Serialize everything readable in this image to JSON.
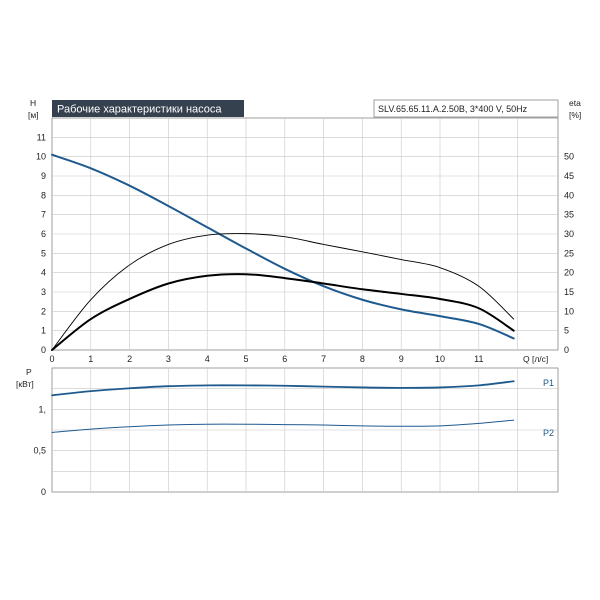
{
  "title": "Рабочие характеристики насоса",
  "model": "SLV.65.65.11.A.2.50B, 3*400 V, 50Hz",
  "colors": {
    "blue": "#1f5a8f",
    "black": "#000000",
    "grid": "#c8c8c8",
    "title_bg": "#36414f"
  },
  "chart_data": [
    {
      "type": "line",
      "xlabel": "Q [л/с]",
      "ylabel": "H\n[м]",
      "y2label": "eta\n[%]",
      "xlim": [
        0,
        12
      ],
      "ylim": [
        0,
        12
      ],
      "y2lim": [
        0,
        60
      ],
      "xticks": [
        "0",
        "1",
        "2",
        "3",
        "4",
        "5",
        "6",
        "7",
        "8",
        "9",
        "10",
        "11"
      ],
      "yticks": [
        "0",
        "1",
        "2",
        "3",
        "4",
        "5",
        "6",
        "7",
        "8",
        "9",
        "10",
        "11"
      ],
      "y2ticks": [
        "0",
        "5",
        "10",
        "15",
        "20",
        "25",
        "30",
        "35",
        "40",
        "45",
        "50"
      ],
      "grid": true,
      "series": [
        {
          "key": "H",
          "axis": "left",
          "color": "#1f5a8f",
          "width": 2,
          "x": [
            0,
            1,
            2,
            3,
            4,
            5,
            6,
            7,
            8,
            9,
            10,
            11,
            11.9
          ],
          "y": [
            10.1,
            9.4,
            8.5,
            7.45,
            6.35,
            5.25,
            4.2,
            3.3,
            2.6,
            2.1,
            1.75,
            1.35,
            0.6
          ]
        },
        {
          "key": "eta_thin",
          "axis": "right",
          "color": "#000000",
          "width": 0.9,
          "x": [
            0,
            1,
            2,
            3,
            4,
            5,
            6,
            7,
            8,
            9,
            10,
            11,
            11.9
          ],
          "y": [
            0,
            13,
            22,
            27.3,
            29.7,
            30.1,
            29.3,
            27.3,
            25.4,
            23.4,
            21.3,
            16.5,
            8.0
          ]
        },
        {
          "key": "eta_thick",
          "axis": "right",
          "color": "#000000",
          "width": 2,
          "x": [
            0,
            1,
            2,
            3,
            4,
            5,
            6,
            7,
            8,
            9,
            10,
            11,
            11.9
          ],
          "y": [
            0,
            8,
            13.2,
            17.2,
            19.2,
            19.6,
            18.6,
            17.2,
            15.7,
            14.5,
            13.2,
            10.8,
            5.0
          ]
        }
      ]
    },
    {
      "type": "line",
      "xlabel": "",
      "ylabel": "P\n[кВт]",
      "xlim": [
        0,
        12
      ],
      "ylim": [
        0,
        1.5
      ],
      "yticks": [
        "0",
        "0,5",
        "1,"
      ],
      "ytick_values": [
        0,
        0.5,
        1.0
      ],
      "grid": true,
      "series": [
        {
          "name": "P1",
          "color": "#1f5a8f",
          "width": 1.8,
          "x": [
            0,
            1,
            2,
            3,
            4,
            5,
            6,
            7,
            8,
            9,
            10,
            11,
            11.9
          ],
          "y": [
            1.17,
            1.22,
            1.255,
            1.28,
            1.29,
            1.29,
            1.285,
            1.275,
            1.265,
            1.26,
            1.265,
            1.29,
            1.34
          ]
        },
        {
          "name": "P2",
          "color": "#1f5a8f",
          "width": 1,
          "x": [
            0,
            1,
            2,
            3,
            4,
            5,
            6,
            7,
            8,
            9,
            10,
            11,
            11.9
          ],
          "y": [
            0.72,
            0.76,
            0.79,
            0.81,
            0.82,
            0.82,
            0.815,
            0.81,
            0.8,
            0.795,
            0.8,
            0.83,
            0.87
          ]
        }
      ]
    }
  ]
}
